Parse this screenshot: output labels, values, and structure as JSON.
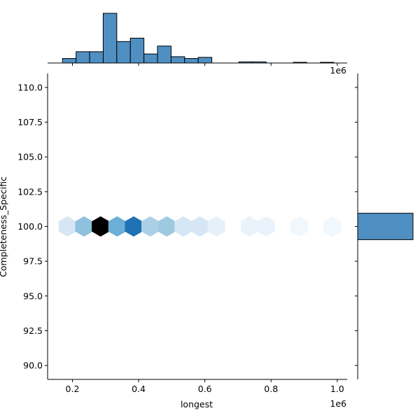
{
  "chart_data": [
    {
      "type": "heatmap",
      "subtype": "hexbin",
      "xlabel": "longest",
      "ylabel": "Completeness_Specific",
      "x_offset_label": "1e6",
      "xlim": [
        125000,
        1030000
      ],
      "ylim": [
        89,
        111
      ],
      "xticks": [
        200000,
        400000,
        600000,
        800000,
        1000000
      ],
      "xtick_labels": [
        "0.2",
        "0.4",
        "0.6",
        "0.8",
        "1.0"
      ],
      "yticks": [
        90.0,
        92.5,
        95.0,
        97.5,
        100.0,
        102.5,
        105.0,
        107.5,
        110.0
      ],
      "ytick_labels": [
        "90.0",
        "92.5",
        "95.0",
        "97.5",
        "100.0",
        "102.5",
        "105.0",
        "107.5",
        "110.0"
      ],
      "cmap": "Blues",
      "cells": [
        {
          "x": 185000,
          "y": 100,
          "count": 2
        },
        {
          "x": 235000,
          "y": 100,
          "count": 5
        },
        {
          "x": 285000,
          "y": 100,
          "count": 10
        },
        {
          "x": 335000,
          "y": 100,
          "count": 6
        },
        {
          "x": 385000,
          "y": 100,
          "count": 8
        },
        {
          "x": 435000,
          "y": 100,
          "count": 4
        },
        {
          "x": 485000,
          "y": 100,
          "count": 4.5
        },
        {
          "x": 535000,
          "y": 100,
          "count": 2
        },
        {
          "x": 585000,
          "y": 100,
          "count": 2
        },
        {
          "x": 635000,
          "y": 100,
          "count": 1
        },
        {
          "x": 735000,
          "y": 100,
          "count": 0.8
        },
        {
          "x": 785000,
          "y": 100,
          "count": 0.8
        },
        {
          "x": 885000,
          "y": 100,
          "count": 0.4
        },
        {
          "x": 985000,
          "y": 100,
          "count": 0.4
        }
      ]
    },
    {
      "type": "bar",
      "role": "top-marginal-histogram",
      "variable": "longest",
      "bin_edges": [
        170000,
        211000,
        252000,
        293000,
        334000,
        375000,
        416000,
        457000,
        498000,
        539000,
        580000,
        621000,
        662000,
        703000,
        744000,
        785000,
        826000,
        867000,
        908000,
        949000,
        990000
      ],
      "values": [
        2,
        5,
        5,
        22,
        9.5,
        11,
        4,
        7.5,
        2.8,
        2,
        2.5,
        0,
        0,
        0.5,
        0.5,
        0,
        0,
        0.3,
        0,
        0.3
      ]
    },
    {
      "type": "bar",
      "role": "right-marginal-histogram",
      "variable": "Completeness_Specific",
      "bins": [
        {
          "y0": 99.05,
          "y1": 100.95,
          "count": 90
        }
      ]
    }
  ]
}
